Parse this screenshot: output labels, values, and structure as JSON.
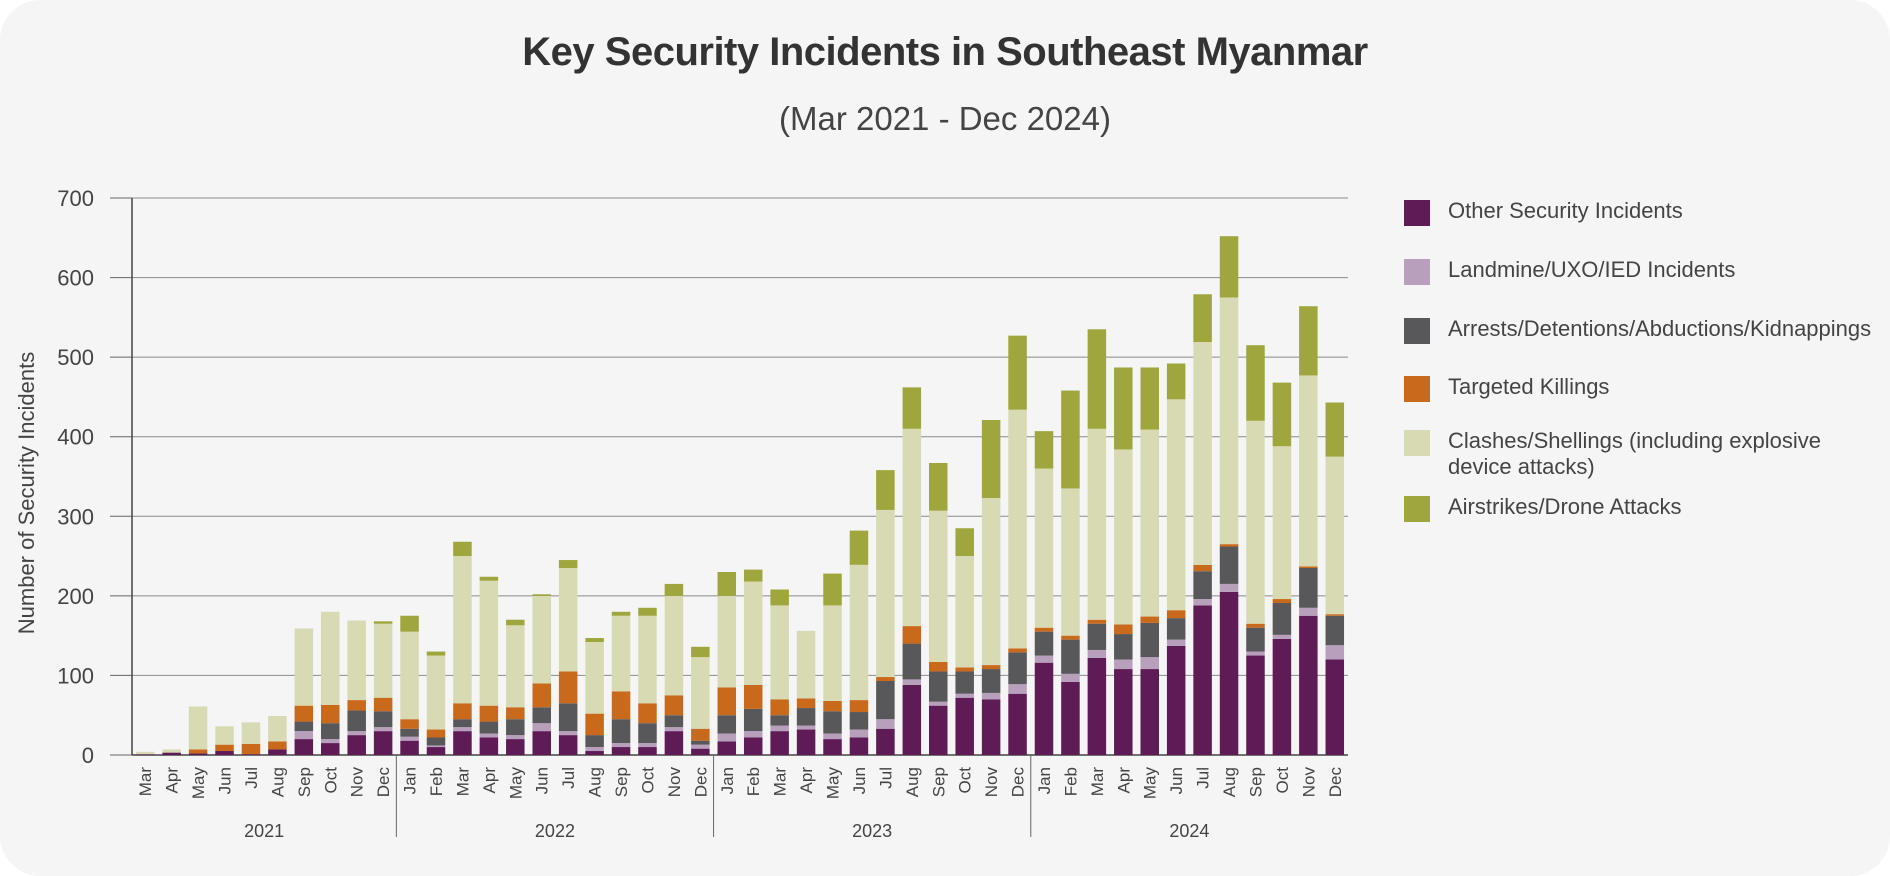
{
  "chart_data": {
    "type": "bar",
    "stacked": true,
    "title": "Key Security Incidents in Southeast Myanmar",
    "subtitle": "(Mar 2021  -  Dec 2024)",
    "ylabel": "Number of Security Incidents",
    "ylim": [
      0,
      700
    ],
    "yticks": [
      0,
      100,
      200,
      300,
      400,
      500,
      600,
      700
    ],
    "grid": true,
    "legend_position": "right",
    "categories": [
      "Mar",
      "Apr",
      "May",
      "Jun",
      "Jul",
      "Aug",
      "Sep",
      "Oct",
      "Nov",
      "Dec",
      "Jan",
      "Feb",
      "Mar",
      "Apr",
      "May",
      "Jun",
      "Jul",
      "Aug",
      "Sep",
      "Oct",
      "Nov",
      "Dec",
      "Jan",
      "Feb",
      "Mar",
      "Apr",
      "May",
      "Jun",
      "Jul",
      "Aug",
      "Sep",
      "Oct",
      "Nov",
      "Dec",
      "Jan",
      "Feb",
      "Mar",
      "Apr",
      "May",
      "Jun",
      "Jul",
      "Aug",
      "Sep",
      "Oct",
      "Nov",
      "Dec"
    ],
    "year_groups": [
      {
        "label": "2021",
        "count": 10
      },
      {
        "label": "2022",
        "count": 12
      },
      {
        "label": "2023",
        "count": 12
      },
      {
        "label": "2024",
        "count": 12
      }
    ],
    "series": [
      {
        "name": "Other Security Incidents",
        "color": "#5e1b56",
        "values": [
          1,
          3,
          2,
          5,
          1,
          7,
          20,
          15,
          25,
          30,
          18,
          10,
          30,
          22,
          20,
          30,
          25,
          5,
          10,
          10,
          30,
          8,
          17,
          22,
          30,
          32,
          20,
          22,
          33,
          88,
          62,
          72,
          70,
          77,
          116,
          92,
          122,
          108,
          108,
          137,
          188,
          205,
          125,
          146,
          175,
          120
        ]
      },
      {
        "name": "Landmine/UXO/IED Incidents",
        "color": "#b8a0bc",
        "values": [
          0,
          0,
          0,
          0,
          0,
          0,
          10,
          5,
          5,
          5,
          5,
          2,
          5,
          5,
          5,
          10,
          5,
          5,
          5,
          5,
          5,
          5,
          10,
          8,
          7,
          5,
          7,
          10,
          12,
          7,
          5,
          5,
          8,
          12,
          9,
          10,
          10,
          12,
          15,
          8,
          8,
          10,
          5,
          5,
          10,
          18
        ]
      },
      {
        "name": "Arrests/Detentions/Abductions/Kidnappings",
        "color": "#58585a",
        "values": [
          0,
          0,
          0,
          0,
          0,
          0,
          12,
          20,
          26,
          20,
          10,
          10,
          10,
          15,
          20,
          20,
          35,
          15,
          30,
          25,
          15,
          5,
          23,
          28,
          13,
          22,
          28,
          22,
          48,
          45,
          38,
          28,
          30,
          40,
          30,
          43,
          33,
          32,
          43,
          27,
          35,
          47,
          30,
          40,
          50,
          37
        ]
      },
      {
        "name": "Targeted Killings",
        "color": "#c9691c",
        "values": [
          0,
          0,
          5,
          8,
          13,
          10,
          20,
          23,
          13,
          17,
          12,
          10,
          20,
          20,
          15,
          30,
          40,
          27,
          35,
          25,
          25,
          15,
          35,
          30,
          20,
          12,
          13,
          15,
          5,
          22,
          12,
          5,
          5,
          5,
          5,
          5,
          5,
          12,
          8,
          10,
          8,
          3,
          5,
          5,
          2,
          2
        ]
      },
      {
        "name": "Clashes/Shellings (including explosive device attacks)",
        "color": "#d8dab3",
        "values": [
          3,
          4,
          54,
          23,
          27,
          32,
          97,
          117,
          100,
          93,
          110,
          93,
          185,
          157,
          103,
          110,
          130,
          90,
          95,
          110,
          125,
          90,
          115,
          130,
          118,
          85,
          120,
          170,
          210,
          248,
          190,
          140,
          210,
          300,
          200,
          185,
          240,
          220,
          235,
          265,
          280,
          310,
          255,
          192,
          240,
          198
        ]
      },
      {
        "name": "Airstrikes/Drone Attacks",
        "color": "#9ea63d",
        "values": [
          0,
          0,
          0,
          0,
          0,
          0,
          0,
          0,
          0,
          3,
          20,
          5,
          18,
          5,
          7,
          2,
          10,
          5,
          5,
          10,
          15,
          13,
          30,
          15,
          20,
          0,
          40,
          43,
          50,
          52,
          60,
          35,
          98,
          93,
          47,
          123,
          125,
          103,
          78,
          45,
          60,
          77,
          95,
          80,
          87,
          68
        ]
      }
    ]
  }
}
